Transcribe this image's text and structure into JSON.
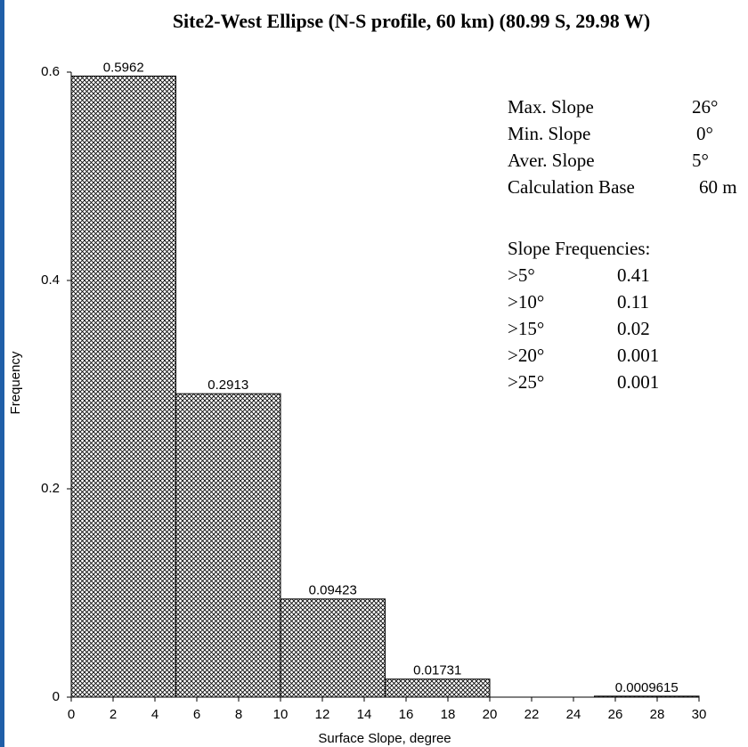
{
  "chart_data": {
    "type": "histogram",
    "title": "Site2-West Ellipse (N-S profile, 60 km) (80.99 S, 29.98 W)",
    "x_label": "Surface Slope, degree",
    "y_label": "Frequency",
    "bins": [
      0,
      5,
      10,
      15,
      20,
      25,
      30
    ],
    "values": [
      0.5962,
      0.2913,
      0.09423,
      0.01731,
      null,
      0.0009615
    ],
    "xlim": [
      0,
      30
    ],
    "ylim": [
      0,
      0.6
    ],
    "xticks": [
      0,
      2,
      4,
      6,
      8,
      10,
      12,
      14,
      16,
      18,
      20,
      22,
      24,
      26,
      28,
      30
    ],
    "yticks": [
      0,
      0.2,
      0.4,
      0.6
    ],
    "color": "#000000",
    "stats": [
      [
        "Max. Slope",
        "26°"
      ],
      [
        "Min. Slope",
        "0°"
      ],
      [
        "Aver. Slope",
        "5°"
      ],
      [
        "Calculation Base",
        "60 m"
      ]
    ],
    "frequencies_title": "Slope Frequencies:",
    "frequencies": [
      [
        ">5°",
        "0.41"
      ],
      [
        ">10°",
        "0.11"
      ],
      [
        ">15°",
        "0.02"
      ],
      [
        ">20°",
        "0.001"
      ],
      [
        ">25°",
        "0.001"
      ]
    ]
  }
}
